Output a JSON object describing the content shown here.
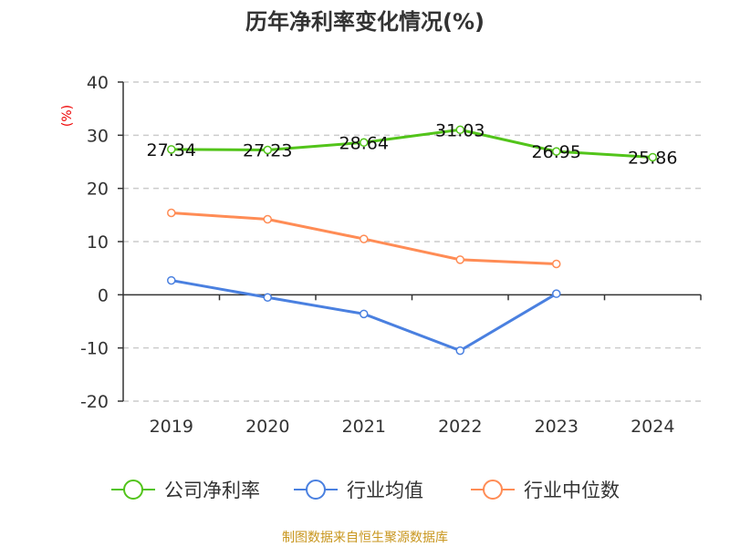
{
  "chart_data": {
    "type": "line",
    "title": "历年净利率变化情况(%)",
    "ylabel": "(%)",
    "categories": [
      "2019",
      "2020",
      "2021",
      "2022",
      "2023",
      "2024"
    ],
    "ylim": [
      -20,
      40
    ],
    "yticks": [
      40,
      30,
      20,
      10,
      0,
      -10,
      -20
    ],
    "grid": true,
    "legend_position": "bottom",
    "series": [
      {
        "name": "公司净利率",
        "color": "#52c41a",
        "values": [
          27.34,
          27.23,
          28.64,
          31.03,
          26.95,
          25.86
        ],
        "labels": [
          "27.34",
          "27.23",
          "28.64",
          "31.03",
          "26.95",
          "25.86"
        ]
      },
      {
        "name": "行业均值",
        "color": "#4a80e0",
        "values": [
          2.7,
          -0.5,
          -3.6,
          -10.5,
          0.2,
          null
        ]
      },
      {
        "name": "行业中位数",
        "color": "#ff8c55",
        "values": [
          15.4,
          14.2,
          10.5,
          6.6,
          5.8,
          null
        ]
      }
    ],
    "source": "制图数据来自恒生聚源数据库"
  }
}
